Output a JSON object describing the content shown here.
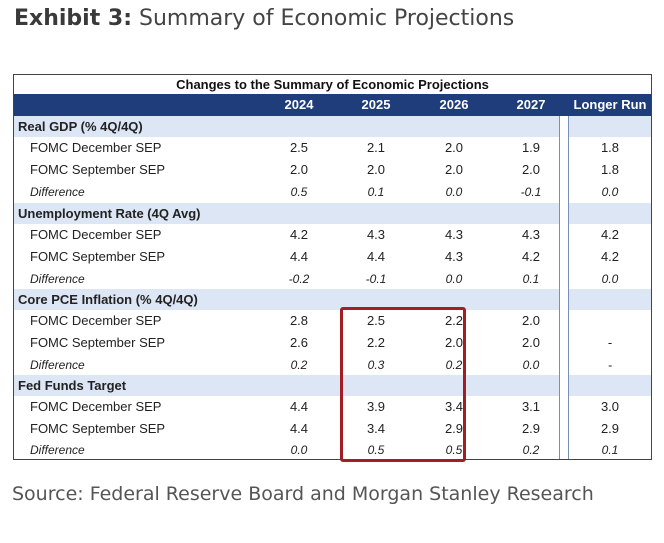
{
  "exhibit": {
    "label": "Exhibit 3:",
    "title": "Summary of Economic Projections"
  },
  "table": {
    "caption": "Changes to the Summary of Economic Projections",
    "columns": [
      "2024",
      "2025",
      "2026",
      "2027",
      "Longer Run"
    ],
    "sections": [
      {
        "title": "Real GDP (% 4Q/4Q)",
        "rows": [
          {
            "label": "FOMC December SEP",
            "values": [
              "2.5",
              "2.1",
              "2.0",
              "1.9",
              "1.8"
            ]
          },
          {
            "label": "FOMC September SEP",
            "values": [
              "2.0",
              "2.0",
              "2.0",
              "2.0",
              "1.8"
            ]
          },
          {
            "label": "Difference",
            "values": [
              "0.5",
              "0.1",
              "0.0",
              "-0.1",
              "0.0"
            ]
          }
        ]
      },
      {
        "title": "Unemployment Rate (4Q Avg)",
        "rows": [
          {
            "label": "FOMC December SEP",
            "values": [
              "4.2",
              "4.3",
              "4.3",
              "4.3",
              "4.2"
            ]
          },
          {
            "label": "FOMC September SEP",
            "values": [
              "4.4",
              "4.4",
              "4.3",
              "4.2",
              "4.2"
            ]
          },
          {
            "label": "Difference",
            "values": [
              "-0.2",
              "-0.1",
              "0.0",
              "0.1",
              "0.0"
            ]
          }
        ]
      },
      {
        "title": "Core PCE Inflation (% 4Q/4Q)",
        "rows": [
          {
            "label": "FOMC December SEP",
            "values": [
              "2.8",
              "2.5",
              "2.2",
              "2.0",
              ""
            ]
          },
          {
            "label": "FOMC September SEP",
            "values": [
              "2.6",
              "2.2",
              "2.0",
              "2.0",
              "-"
            ]
          },
          {
            "label": "Difference",
            "values": [
              "0.2",
              "0.3",
              "0.2",
              "0.0",
              "-"
            ]
          }
        ]
      },
      {
        "title": "Fed Funds Target",
        "rows": [
          {
            "label": "FOMC December SEP",
            "values": [
              "4.4",
              "3.9",
              "3.4",
              "3.1",
              "3.0"
            ]
          },
          {
            "label": "FOMC September SEP",
            "values": [
              "4.4",
              "3.4",
              "2.9",
              "2.9",
              "2.9"
            ]
          },
          {
            "label": "Difference",
            "values": [
              "0.0",
              "0.5",
              "0.5",
              "0.2",
              "0.1"
            ]
          }
        ]
      }
    ]
  },
  "source": "Source: Federal Reserve Board and Morgan Stanley Research",
  "colors": {
    "header_bg": "#1f3d7a",
    "section_bg": "#dce6f5",
    "highlight": "#a31d24"
  }
}
